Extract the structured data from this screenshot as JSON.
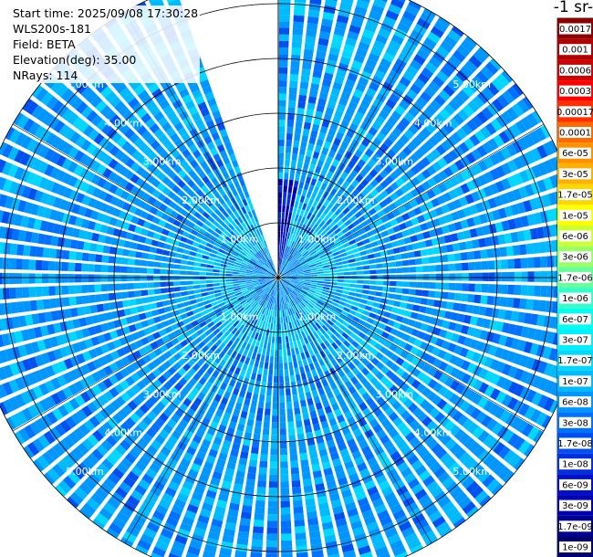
{
  "info": {
    "start_time": "Start time: 2025/09/08 17:30:28",
    "instrument": "WLS200s-181",
    "field": "Field: BETA",
    "elevation": "Elevation(deg): 35.00",
    "nrays": "NRays: 114"
  },
  "colorbar": {
    "units": "-1 sr-",
    "levels": [
      {
        "label": "0.0017",
        "color": "#8b0000"
      },
      {
        "label": "0.001",
        "color": "#b00000"
      },
      {
        "label": "0.0006",
        "color": "#d00000"
      },
      {
        "label": "0.0003",
        "color": "#ff0000"
      },
      {
        "label": "0.00017",
        "color": "#ff3000"
      },
      {
        "label": "0.0001",
        "color": "#ff6a00"
      },
      {
        "label": "6e-05",
        "color": "#ff9000"
      },
      {
        "label": "3e-05",
        "color": "#ffb000"
      },
      {
        "label": "1.7e-05",
        "color": "#ffd700"
      },
      {
        "label": "1e-05",
        "color": "#ffff00"
      },
      {
        "label": "6e-06",
        "color": "#ccff33"
      },
      {
        "label": "3e-06",
        "color": "#99ff66"
      },
      {
        "label": "1.7e-06",
        "color": "#66ff99"
      },
      {
        "label": "1e-06",
        "color": "#33ffcc"
      },
      {
        "label": "6e-07",
        "color": "#00ffee"
      },
      {
        "label": "3e-07",
        "color": "#00f0ff"
      },
      {
        "label": "1.7e-07",
        "color": "#00d8ff"
      },
      {
        "label": "1e-07",
        "color": "#00baff"
      },
      {
        "label": "6e-08",
        "color": "#0096ff"
      },
      {
        "label": "3e-08",
        "color": "#0070ff"
      },
      {
        "label": "1.7e-08",
        "color": "#0050f0"
      },
      {
        "label": "1e-08",
        "color": "#0030e0"
      },
      {
        "label": "6e-09",
        "color": "#0010cc"
      },
      {
        "label": "3e-09",
        "color": "#0000b0"
      },
      {
        "label": "1.7e-09",
        "color": "#000090"
      },
      {
        "label": "1e-09",
        "color": "#000070"
      }
    ]
  },
  "chart_data": {
    "type": "heatmap",
    "projection": "polar",
    "field": "BETA",
    "elevation_deg": 35.0,
    "nrays": 114,
    "range_rings_km": [
      1,
      2,
      3,
      4,
      5
    ],
    "ring_labels": [
      "1.00km",
      "2.00km",
      "3.00km",
      "4.00km",
      "5.00km"
    ],
    "max_range_km": 5.6,
    "missing_sectors_deg": [
      [
        340,
        358
      ]
    ],
    "dominant_value": "6e-08",
    "value_range": [
      "1e-09",
      "1.7e-07"
    ],
    "near_range_north_value": "3e-09"
  }
}
